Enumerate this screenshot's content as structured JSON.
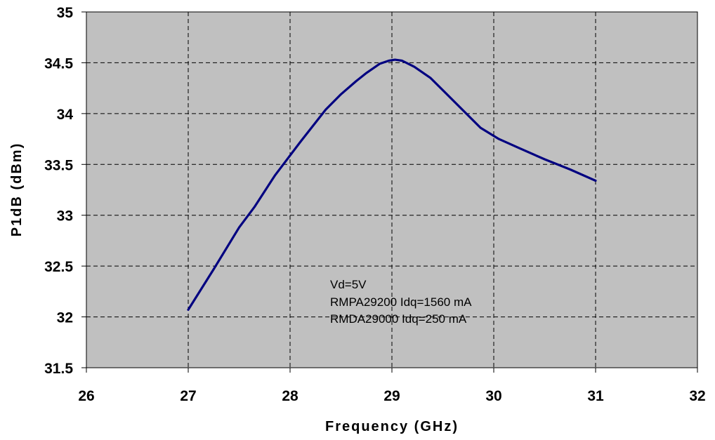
{
  "chart_data": {
    "type": "line",
    "xlabel": "Frequency (GHz)",
    "ylabel": "P1dB (dBm)",
    "xlim": [
      26,
      32
    ],
    "ylim": [
      31.5,
      35
    ],
    "xticks": [
      "26",
      "27",
      "28",
      "29",
      "30",
      "31",
      "32"
    ],
    "yticks": [
      "35",
      "34.5",
      "34",
      "33.5",
      "33",
      "32.5",
      "32",
      "31.5"
    ],
    "grid": true,
    "plot_background": "#c0c0c0",
    "line_color": "#000080",
    "annotations": [
      "Vd=5V",
      "RMPA29200 Idq=1560 mA",
      "RMDA29000 Idq=250 mA"
    ],
    "series": [
      {
        "x": [
          27,
          27.25,
          27.5,
          27.65,
          27.85,
          28.1,
          28.35,
          28.5,
          28.65,
          28.75,
          28.88,
          28.97,
          29.03,
          29.1,
          29.22,
          29.38,
          29.6,
          29.87,
          30.05,
          30.25,
          30.5,
          30.75,
          31
        ],
        "y": [
          32.07,
          32.47,
          32.88,
          33.08,
          33.39,
          33.72,
          34.04,
          34.19,
          34.32,
          34.4,
          34.49,
          34.52,
          34.53,
          34.52,
          34.46,
          34.35,
          34.13,
          33.86,
          33.75,
          33.66,
          33.55,
          33.45,
          33.34
        ]
      }
    ]
  }
}
